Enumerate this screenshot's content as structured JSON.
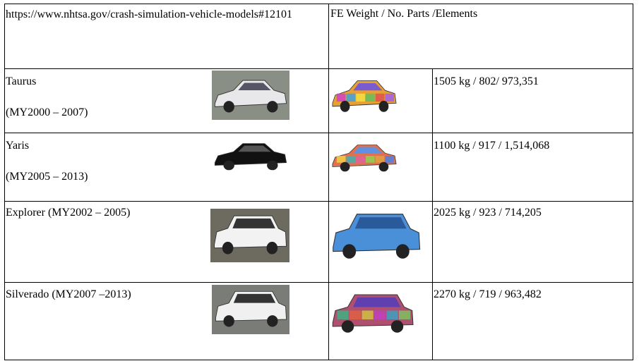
{
  "header": {
    "source": "https://www.nhtsa.gov/crash-simulation-vehicle-models#12101",
    "spec_heading": "FE Weight / No. Parts /Elements"
  },
  "rows": [
    {
      "name": "Taurus",
      "years": "(MY2000 – 2007)",
      "spec": "1505 kg / 802/ 973,351"
    },
    {
      "name": "Yaris",
      "years": "(MY2005 – 2013)",
      "spec": "1100 kg / 917 / 1,514,068"
    },
    {
      "name": "Explorer (MY2002 – 2005)",
      "spec": "2025 kg / 923 / 714,205"
    },
    {
      "name": "Silverado (MY2007 –2013)",
      "spec": "2270 kg / 719 / 963,482"
    }
  ]
}
